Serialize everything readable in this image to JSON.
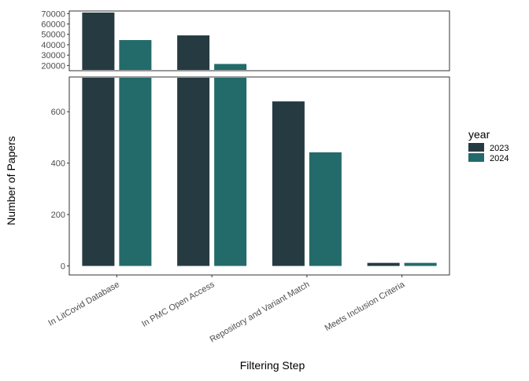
{
  "chart_data": {
    "type": "bar",
    "layout": "broken-axis (two stacked panels sharing the x axis)",
    "categories": [
      "In LitCovid Database",
      "In PMC Open Access",
      "Repository and Variant Match",
      "Meets Inclusion Criteria"
    ],
    "series": [
      {
        "name": "2023",
        "color": "#263A42",
        "values": [
          71000,
          49000,
          640,
          12
        ]
      },
      {
        "name": "2024",
        "color": "#236B6A",
        "values": [
          44500,
          21500,
          442,
          12
        ]
      }
    ],
    "xlabel": "Filtering Step",
    "ylabel": "Number of Papers",
    "legend": {
      "title": "year",
      "position": "right",
      "labels": [
        "2023",
        "2024"
      ]
    },
    "panels": {
      "upper": {
        "ylim": [
          15000,
          72500
        ],
        "ticks": [
          20000,
          30000,
          40000,
          50000,
          60000,
          70000
        ]
      },
      "lower": {
        "ylim": [
          -35,
          735
        ],
        "ticks": [
          0,
          200,
          400,
          600
        ]
      }
    },
    "grid": false,
    "x_tick_label_rotation": "angled (~30 degrees)"
  }
}
